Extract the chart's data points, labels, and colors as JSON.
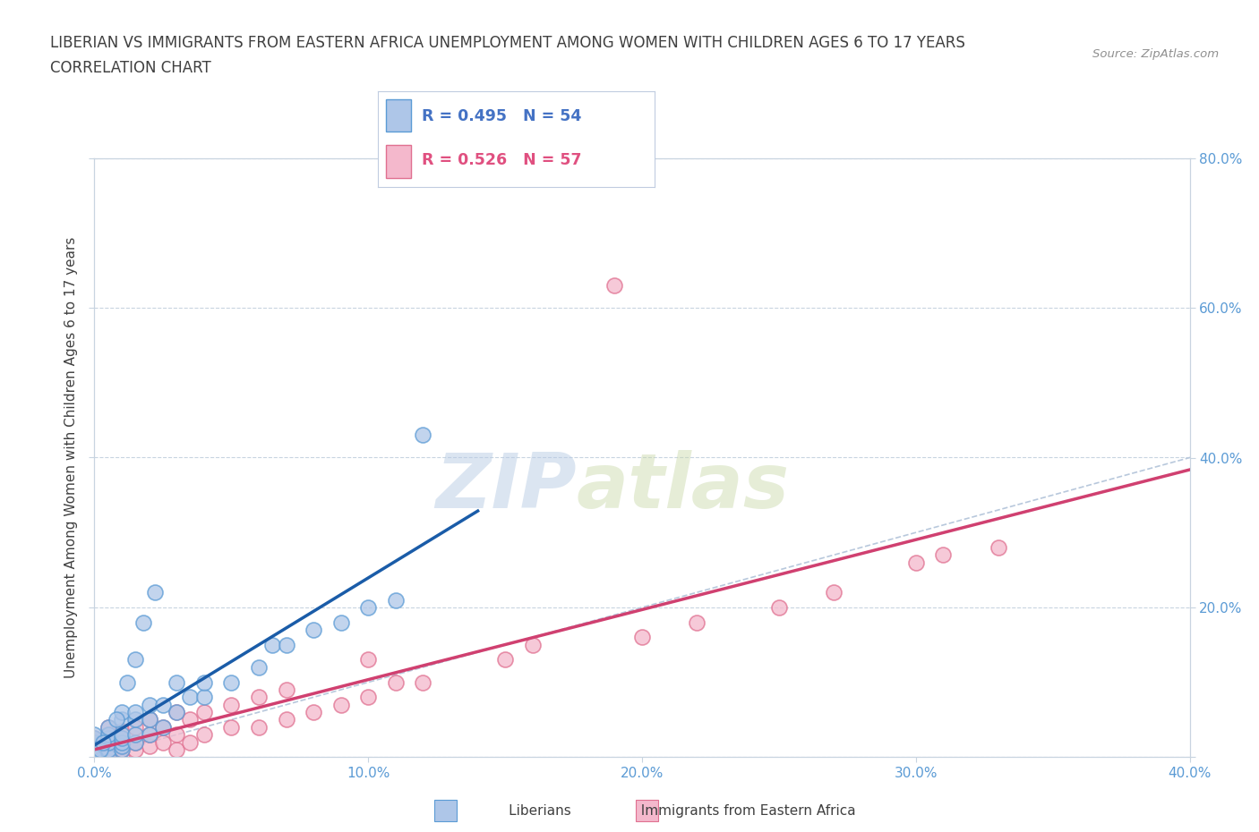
{
  "title_line1": "LIBERIAN VS IMMIGRANTS FROM EASTERN AFRICA UNEMPLOYMENT AMONG WOMEN WITH CHILDREN AGES 6 TO 17 YEARS",
  "title_line2": "CORRELATION CHART",
  "source": "Source: ZipAtlas.com",
  "ylabel": "Unemployment Among Women with Children Ages 6 to 17 years",
  "xlim": [
    0.0,
    0.4
  ],
  "ylim": [
    0.0,
    0.8
  ],
  "xticks": [
    0.0,
    0.1,
    0.2,
    0.3,
    0.4
  ],
  "yticks": [
    0.0,
    0.2,
    0.4,
    0.6,
    0.8
  ],
  "liberian_color": "#aec6e8",
  "liberian_edge_color": "#5b9bd5",
  "eastern_africa_color": "#f4b8cc",
  "eastern_africa_edge_color": "#e07090",
  "liberian_R": 0.495,
  "liberian_N": 54,
  "eastern_africa_R": 0.526,
  "eastern_africa_N": 57,
  "trend_liberian_color": "#1a5ca8",
  "trend_eastern_color": "#d04070",
  "trend_diagonal_color": "#b8c8dc",
  "watermark_zip": "ZIP",
  "watermark_atlas": "atlas",
  "tick_color": "#5b9bd5",
  "grid_color": "#c8d4e0",
  "spine_color": "#c8d4e0"
}
